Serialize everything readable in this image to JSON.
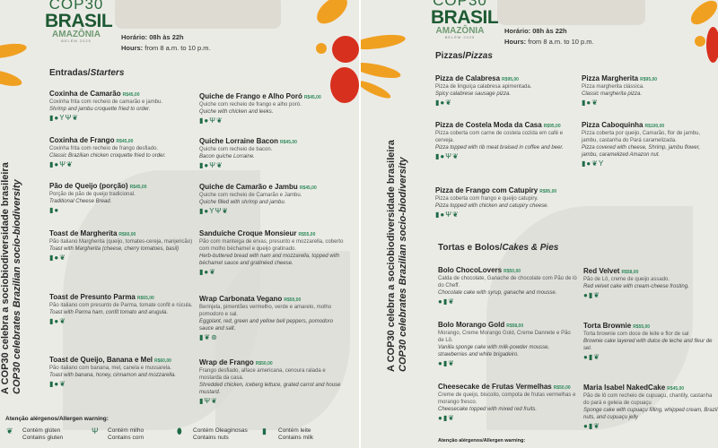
{
  "colors": {
    "accent": "#1f6b45",
    "price": "#2e8a5a",
    "orange": "#f0a021",
    "red": "#d8301e",
    "background": "#ebebe6"
  },
  "logo": {
    "cop": "COP30",
    "brasil": "BRASIL",
    "amazonia": "AMAZÔNIA",
    "belem": "BELÉM 2025"
  },
  "hours": {
    "pt_label": "Horário:",
    "pt_value": "08h às 22h",
    "en_label": "Hours:",
    "en_value": "from 8 a.m. to 10 p.m."
  },
  "tagline": {
    "pt": "A COP30 celebra a sociobiodiversidade brasileira",
    "en": "COP30 celebrates Brazilian socio-biodiversity"
  },
  "icon_legend": {
    "gluten": "❦",
    "corn": "Ψ",
    "nuts": "⬮",
    "milk": "▮",
    "egg": "●",
    "vegan": "⊛",
    "shellfish": "Y"
  },
  "menu1": {
    "section_pt": "Entradas/",
    "section_en": "Starters",
    "items": [
      {
        "name": "Coxinha de Camarão",
        "price": "R$45,00",
        "pt": "Coxinha frita com recheio de camarão e jambu.",
        "en": "Shrimp and jambu croquette fried to order.",
        "icons": [
          "milk",
          "egg",
          "shellfish",
          "corn",
          "gluten"
        ]
      },
      {
        "name": "Coxinha de Frango",
        "price": "R$45,00",
        "pt": "Coxinha frita com recheio de frango desfiado.",
        "en": "Classic Brazilian chicken croquette fried to order.",
        "icons": [
          "milk",
          "egg",
          "corn",
          "gluten"
        ]
      },
      {
        "name": "Pão de Queijo (porção)",
        "price": "R$45,00",
        "pt": "Porção de pão de queijo tradicional.",
        "en": "Traditional Cheese Bread.",
        "icons": [
          "milk",
          "egg"
        ]
      },
      {
        "name": "Toast de Margherita",
        "price": "R$60,00",
        "pt": "Pão italiano Margherita (queijo, tomates-cereja, manjericão)",
        "en": "Toast with Margherita (cheese, cherry tomatoes, basil)",
        "icons": [
          "milk",
          "egg",
          "gluten"
        ]
      },
      {
        "name": "Toast de Presunto Parma",
        "price": "R$65,00",
        "pt": "Pão italiano com presunto de Parma, tomate confit e rúcula.",
        "en": "Toast with Parma ham, confit tomato and arugula.",
        "icons": [
          "milk",
          "egg",
          "gluten"
        ]
      },
      {
        "name": "Toast de Queijo, Banana e Mel",
        "price": "R$60,00",
        "pt": "Pão italiano com banana, mel, canela e mussarela.",
        "en": "Toast with banana, honey, cinnamon and mozzarella.",
        "icons": [
          "milk",
          "egg",
          "gluten"
        ]
      },
      {
        "name": "Quiche de Frango e Alho Poró",
        "price": "R$45,00",
        "pt": "Quiche com recheio de frango e alho poró.",
        "en": "Quiche with chicken and leeks.",
        "icons": [
          "milk",
          "egg",
          "corn",
          "gluten"
        ]
      },
      {
        "name": "Quiche Lorraine Bacon",
        "price": "R$45,00",
        "pt": "Quiche com recheio de bacon.",
        "en": "Bacon quiche Lorraine.",
        "icons": [
          "milk",
          "egg",
          "corn",
          "gluten"
        ]
      },
      {
        "name": "Quiche de Camarão e Jambu",
        "price": "R$45,00",
        "pt": "Quiche com recheio de Camarão e Jambu.",
        "en": "Quiche filled with shrimp and jambu.",
        "icons": [
          "milk",
          "egg",
          "shellfish",
          "corn",
          "gluten"
        ]
      },
      {
        "name": "Sanduíche Croque Monsieur",
        "price": "R$55,00",
        "pt": "Pão com manteiga de ervas, presunto e mozzarella, coberto com molho béchamel e queijo gratinado.",
        "en": "Herb-buttered bread with ham and mozzarella, topped with béchamel sauce and gratinéed cheese.",
        "icons": [
          "milk",
          "egg",
          "gluten"
        ]
      },
      {
        "name": "Wrap Carbonata Vegano",
        "price": "R$50,00",
        "pt": "Berinjela, pimentões vermelho, verde e amarelo, molho pomodoro e sal.",
        "en": "Eggplant, red, green and yellow bell peppers, pomodoro sauce and salt.",
        "icons": [
          "milk",
          "gluten",
          "vegan"
        ]
      },
      {
        "name": "Wrap de Frango",
        "price": "R$50,00",
        "pt": "Frango desfiado, alface americana, cenoura ralada e mostarda da casa.",
        "en": "Shredded chicken, iceberg lettuce, grated carrot and house mustard.",
        "icons": [
          "milk",
          "corn",
          "gluten"
        ]
      }
    ]
  },
  "allergens": {
    "title": "Atenção alérgenos/Allergen warning:",
    "items": [
      {
        "icon": "gluten",
        "pt": "Contém glúten",
        "en": "Contains gluten"
      },
      {
        "icon": "corn",
        "pt": "Contém milho",
        "en": "Contains corn"
      },
      {
        "icon": "nuts",
        "pt": "Contém Oleaginosas",
        "en": "Contains nuts"
      },
      {
        "icon": "milk",
        "pt": "Contém leite",
        "en": "Contains milk"
      }
    ]
  },
  "menu2": {
    "section_pt": "Pizzas/",
    "section_en": "Pizzas",
    "section2_pt": "Tortas e Bolos/",
    "section2_en": "Cakes & Pies",
    "items": [
      {
        "name": "Pizza de Calabresa",
        "price": "R$95,00",
        "pt": "Pizza de linguiça calabresa apimentada.",
        "en": "Spicy calabrese sausage pizza.",
        "icons": [
          "milk",
          "egg",
          "gluten"
        ]
      },
      {
        "name": "Pizza de Costela Moda da Casa",
        "price": "R$95,00",
        "pt": "Pizza coberta com carne de costela cozida em café e cerveja.",
        "en": "Pizza topped with rib meat braised in coffee and beer.",
        "icons": [
          "milk",
          "egg",
          "corn",
          "gluten"
        ]
      },
      {
        "name": "Pizza de Frango com Catupiry",
        "price": "R$95,00",
        "pt": "Pizza coberta com frango e queijo catupiry.",
        "en": "Pizza topped with chicken and catupiry cheese.",
        "icons": [
          "milk",
          "egg",
          "corn",
          "gluten"
        ]
      },
      {
        "name": "Pizza Margherita",
        "price": "R$95,00",
        "pt": "Pizza margherita clássica.",
        "en": "Classic margherita pizza.",
        "icons": [
          "milk",
          "egg",
          "gluten"
        ]
      },
      {
        "name": "Pizza Caboquinha",
        "price": "R$100,00",
        "pt": "Pizza coberta por queijo, Camarão, flor de jambu, jambu, castanha do Pará caramelizada.",
        "en": "Pizza covered with cheese, Shrimp, jambu flower, jambu, caramelized Amazon nut.",
        "icons": [
          "milk",
          "egg",
          "gluten",
          "shellfish"
        ]
      },
      {
        "name": "Bolo ChocoLovers",
        "price": "R$50,00",
        "pt": "Calda de chocolate, Ganache de chocolate com Pão de lò do Cheff.",
        "en": "Chocolate cake with syrup, ganache and mousse.",
        "icons": [
          "egg",
          "milk",
          "gluten"
        ]
      },
      {
        "name": "Bolo Morango Gold",
        "price": "R$58,00",
        "pt": "Morango, Creme Morango Gold, Creme Dannete e Pão de Lô.",
        "en": "Vanilla sponge cake with milk-powder mousse, strawberries and white brigadeiro.",
        "icons": [
          "egg",
          "milk",
          "gluten"
        ]
      },
      {
        "name": "Cheesecake de Frutas Vermelhas",
        "price": "R$50,00",
        "pt": "Creme de queijo, biscoito, compota de frutas vermelhas e morango fresco.",
        "en": "Cheesecake topped with mixed red fruits.",
        "icons": [
          "egg",
          "milk",
          "gluten"
        ]
      },
      {
        "name": "Red Velvet",
        "price": "R$58,00",
        "pt": "Pão de Lô, creme de queijo assado.",
        "en": "Red velvet cake with cream-cheese frosting.",
        "icons": [
          "egg",
          "milk",
          "gluten"
        ]
      },
      {
        "name": "Torta Brownie",
        "price": "R$55,00",
        "pt": "Torta brownie com doce de leite e flor de sal",
        "en": "Brownie cake layered with dulce de leche and fleur de sel.",
        "icons": [
          "egg",
          "milk",
          "gluten"
        ]
      },
      {
        "name": "Maria Isabel NakedCake",
        "price": "R$45,00",
        "pt": "Pão de lô com recheio de cupuaçu, chantily, castanha do pará e geleia de cupuaçu",
        "en": "Sponge cake with cupuaçu filling, whipped cream, Brazil nuts, and cupuaçu jelly",
        "icons": [
          "egg",
          "milk",
          "gluten"
        ]
      }
    ]
  }
}
